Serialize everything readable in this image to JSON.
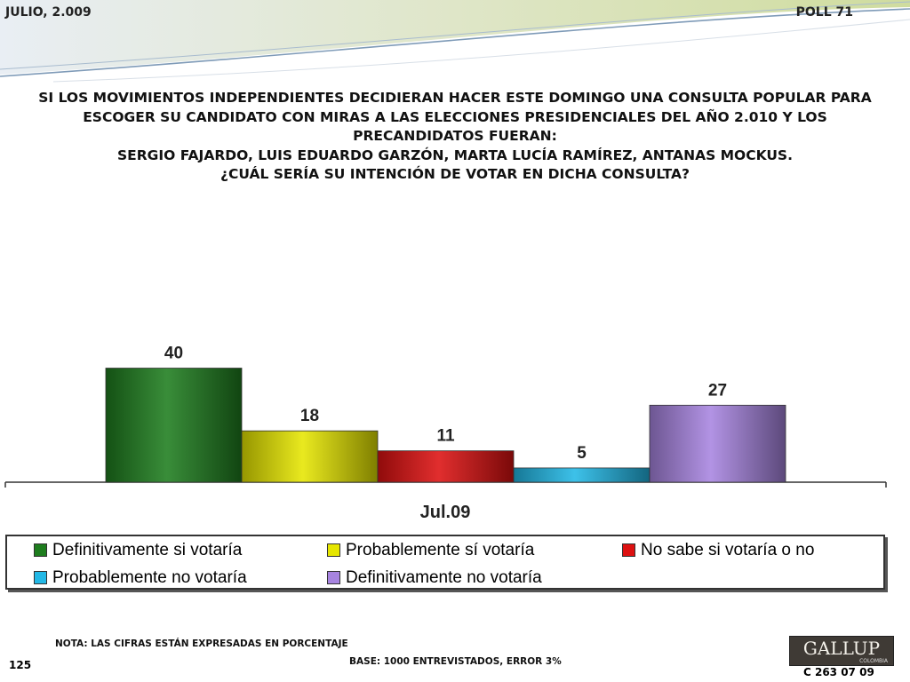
{
  "header": {
    "date": "JULIO, 2.009",
    "poll": "POLL 71"
  },
  "question": {
    "lines": [
      "SI LOS MOVIMIENTOS INDEPENDIENTES DECIDIERAN HACER ESTE DOMINGO UNA CONSULTA POPULAR PARA",
      "ESCOGER SU CANDIDATO CON MIRAS A LAS ELECCIONES PRESIDENCIALES DEL AÑO 2.010 Y LOS",
      "PRECANDIDATOS FUERAN:",
      "SERGIO FAJARDO, LUIS EDUARDO GARZÓN, MARTA LUCÍA RAMÍREZ, ANTANAS MOCKUS.",
      "¿CUÁL SERÍA SU INTENCIÓN DE VOTAR EN DICHA CONSULTA?"
    ]
  },
  "chart_data": {
    "type": "bar",
    "categories": [
      "Jul.09"
    ],
    "series": [
      {
        "name": "Definitivamente si votaría",
        "values": [
          40
        ],
        "color": "#1e7d1e"
      },
      {
        "name": "Probablemente sí votaría",
        "values": [
          18
        ],
        "color": "#e6e600"
      },
      {
        "name": "No sabe si votaría o no",
        "values": [
          11
        ],
        "color": "#dd1111"
      },
      {
        "name": "Probablemente no votaría",
        "values": [
          5
        ],
        "color": "#22b8e6"
      },
      {
        "name": "Definitivamente no votaría",
        "values": [
          27
        ],
        "color": "#a784e0"
      }
    ],
    "ylim": [
      0,
      52
    ],
    "grid": false,
    "legend": "bottom"
  },
  "footer": {
    "note": "NOTA: LAS CIFRAS ESTÁN EXPRESADAS EN PORCENTAJE",
    "base": "BASE: 1000 ENTREVISTADOS, ERROR 3%",
    "page_number": "125",
    "code": "C 263 07 09",
    "logo_text": "GALLUP",
    "logo_sub": "COLOMBIA"
  }
}
